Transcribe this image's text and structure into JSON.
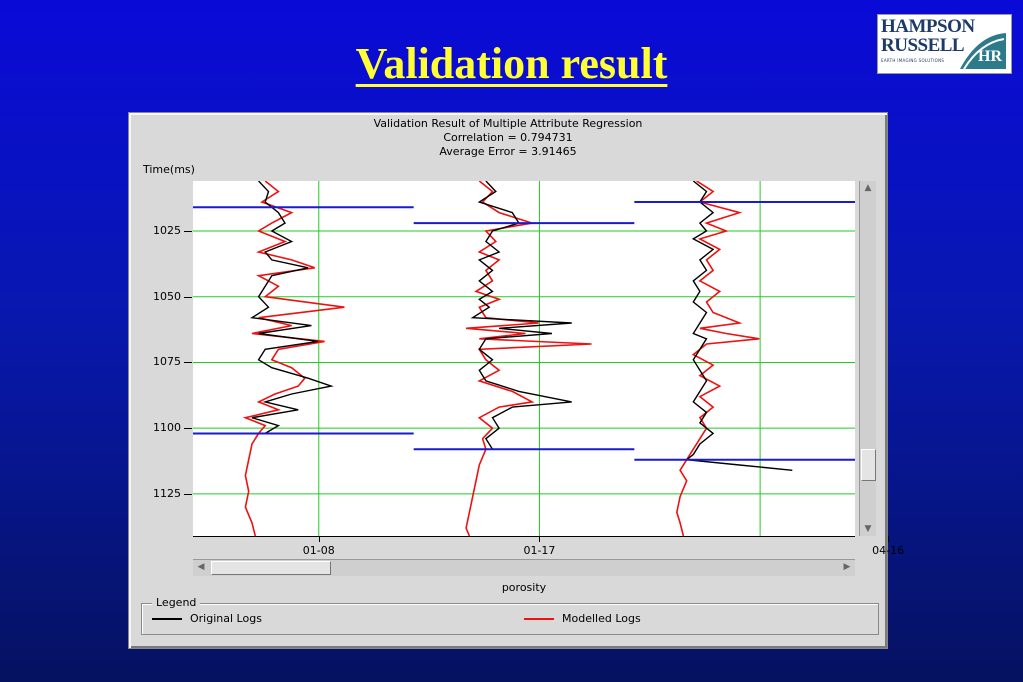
{
  "slide": {
    "title": "Validation result",
    "title_color": "#ffff33",
    "logo": {
      "line1": "HAMPSON",
      "line2": "RUSSELL",
      "tagline": "EARTH IMAGING SOLUTIONS",
      "mark": "HR"
    }
  },
  "chart_data": {
    "type": "line",
    "title": "Validation Result of Multiple Attribute Regression",
    "subtitle_lines": [
      "Correlation = 0.794731",
      "Average Error = 3.91465"
    ],
    "ylabel": "Time(ms)",
    "xlabel": "porosity",
    "y_reversed": true,
    "ylim": [
      1006,
      1141
    ],
    "yticks": [
      1025,
      1050,
      1075,
      1100,
      1125
    ],
    "xticks": [
      "01-08",
      "01-17",
      "04-16"
    ],
    "grid": true,
    "legend": {
      "title": "Legend",
      "placement": "bottom",
      "entries": [
        {
          "label": "Original Logs",
          "color": "#000000"
        },
        {
          "label": "Modelled Logs",
          "color": "#ee1111"
        }
      ]
    },
    "colors": {
      "original": "#000000",
      "modelled": "#ee1111",
      "horizon": "#1a1ad0",
      "grid": "#22cc22"
    },
    "tracks": [
      {
        "well": "01-08",
        "window": [
          1016,
          1102
        ],
        "original": [
          [
            12,
            1006
          ],
          [
            15,
            1010
          ],
          [
            14,
            1014
          ],
          [
            18,
            1018
          ],
          [
            20,
            1022
          ],
          [
            16,
            1025
          ],
          [
            22,
            1029
          ],
          [
            14,
            1033
          ],
          [
            16,
            1036
          ],
          [
            27,
            1039
          ],
          [
            16,
            1042
          ],
          [
            14,
            1046
          ],
          [
            12,
            1050
          ],
          [
            15,
            1054
          ],
          [
            10,
            1058
          ],
          [
            28,
            1061
          ],
          [
            12,
            1064
          ],
          [
            30,
            1067
          ],
          [
            14,
            1070
          ],
          [
            12,
            1074
          ],
          [
            16,
            1077
          ],
          [
            27,
            1081
          ],
          [
            34,
            1084
          ],
          [
            22,
            1087
          ],
          [
            14,
            1090
          ],
          [
            24,
            1093
          ],
          [
            10,
            1096
          ],
          [
            18,
            1099
          ],
          [
            14,
            1102
          ]
        ],
        "modelled": [
          [
            14,
            1006
          ],
          [
            18,
            1010
          ],
          [
            13,
            1014
          ],
          [
            22,
            1018
          ],
          [
            16,
            1022
          ],
          [
            12,
            1025
          ],
          [
            20,
            1029
          ],
          [
            12,
            1033
          ],
          [
            22,
            1036
          ],
          [
            29,
            1039
          ],
          [
            12,
            1042
          ],
          [
            18,
            1046
          ],
          [
            14,
            1050
          ],
          [
            38,
            1054
          ],
          [
            12,
            1058
          ],
          [
            22,
            1061
          ],
          [
            10,
            1064
          ],
          [
            32,
            1067
          ],
          [
            18,
            1070
          ],
          [
            16,
            1074
          ],
          [
            22,
            1077
          ],
          [
            26,
            1081
          ],
          [
            24,
            1084
          ],
          [
            17,
            1087
          ],
          [
            12,
            1090
          ],
          [
            18,
            1093
          ],
          [
            8,
            1096
          ],
          [
            14,
            1099
          ],
          [
            12,
            1102
          ],
          [
            10,
            1106
          ],
          [
            9,
            1112
          ],
          [
            8,
            1118
          ],
          [
            9,
            1124
          ],
          [
            8,
            1130
          ],
          [
            10,
            1136
          ],
          [
            11,
            1141
          ]
        ]
      },
      {
        "well": "01-17",
        "window": [
          1022,
          1108
        ],
        "original": [
          [
            14,
            1006
          ],
          [
            17,
            1010
          ],
          [
            12,
            1014
          ],
          [
            22,
            1018
          ],
          [
            24,
            1022
          ],
          [
            16,
            1025
          ],
          [
            14,
            1029
          ],
          [
            18,
            1033
          ],
          [
            12,
            1036
          ],
          [
            16,
            1040
          ],
          [
            12,
            1044
          ],
          [
            16,
            1048
          ],
          [
            12,
            1051
          ],
          [
            15,
            1054
          ],
          [
            10,
            1058
          ],
          [
            40,
            1060
          ],
          [
            18,
            1062
          ],
          [
            34,
            1064
          ],
          [
            14,
            1066
          ],
          [
            12,
            1070
          ],
          [
            16,
            1074
          ],
          [
            12,
            1078
          ],
          [
            14,
            1082
          ],
          [
            24,
            1086
          ],
          [
            40,
            1090
          ],
          [
            22,
            1092
          ],
          [
            16,
            1096
          ],
          [
            18,
            1100
          ],
          [
            14,
            1104
          ],
          [
            16,
            1108
          ]
        ],
        "modelled": [
          [
            12,
            1006
          ],
          [
            16,
            1010
          ],
          [
            13,
            1014
          ],
          [
            18,
            1018
          ],
          [
            28,
            1022
          ],
          [
            14,
            1025
          ],
          [
            17,
            1029
          ],
          [
            12,
            1033
          ],
          [
            18,
            1036
          ],
          [
            14,
            1040
          ],
          [
            16,
            1044
          ],
          [
            11,
            1048
          ],
          [
            18,
            1051
          ],
          [
            12,
            1054
          ],
          [
            14,
            1058
          ],
          [
            30,
            1060
          ],
          [
            8,
            1062
          ],
          [
            26,
            1064
          ],
          [
            12,
            1066
          ],
          [
            46,
            1068
          ],
          [
            12,
            1070
          ],
          [
            14,
            1074
          ],
          [
            18,
            1078
          ],
          [
            12,
            1082
          ],
          [
            22,
            1086
          ],
          [
            28,
            1090
          ],
          [
            18,
            1092
          ],
          [
            12,
            1096
          ],
          [
            16,
            1100
          ],
          [
            13,
            1104
          ],
          [
            14,
            1108
          ],
          [
            12,
            1114
          ],
          [
            11,
            1120
          ],
          [
            10,
            1126
          ],
          [
            9,
            1132
          ],
          [
            8,
            1138
          ],
          [
            9,
            1141
          ]
        ]
      },
      {
        "well": "04-16",
        "window": [
          1014,
          1112
        ],
        "original": [
          [
            10,
            1006
          ],
          [
            14,
            1010
          ],
          [
            12,
            1014
          ],
          [
            16,
            1018
          ],
          [
            12,
            1022
          ],
          [
            14,
            1025
          ],
          [
            10,
            1028
          ],
          [
            16,
            1032
          ],
          [
            12,
            1036
          ],
          [
            14,
            1040
          ],
          [
            10,
            1044
          ],
          [
            12,
            1048
          ],
          [
            10,
            1052
          ],
          [
            14,
            1056
          ],
          [
            12,
            1060
          ],
          [
            10,
            1064
          ],
          [
            14,
            1066
          ],
          [
            12,
            1070
          ],
          [
            10,
            1074
          ],
          [
            12,
            1078
          ],
          [
            14,
            1082
          ],
          [
            12,
            1086
          ],
          [
            10,
            1090
          ],
          [
            14,
            1094
          ],
          [
            12,
            1098
          ],
          [
            16,
            1102
          ],
          [
            12,
            1106
          ],
          [
            10,
            1110
          ],
          [
            8,
            1112
          ],
          [
            24,
            1114
          ],
          [
            40,
            1116
          ]
        ],
        "modelled": [
          [
            11,
            1006
          ],
          [
            16,
            1010
          ],
          [
            12,
            1014
          ],
          [
            24,
            1018
          ],
          [
            14,
            1022
          ],
          [
            20,
            1025
          ],
          [
            12,
            1028
          ],
          [
            18,
            1032
          ],
          [
            14,
            1036
          ],
          [
            16,
            1040
          ],
          [
            12,
            1044
          ],
          [
            18,
            1048
          ],
          [
            14,
            1052
          ],
          [
            16,
            1056
          ],
          [
            24,
            1060
          ],
          [
            12,
            1062
          ],
          [
            20,
            1064
          ],
          [
            30,
            1066
          ],
          [
            14,
            1068
          ],
          [
            10,
            1072
          ],
          [
            16,
            1076
          ],
          [
            12,
            1080
          ],
          [
            18,
            1084
          ],
          [
            12,
            1088
          ],
          [
            16,
            1092
          ],
          [
            12,
            1096
          ],
          [
            14,
            1100
          ],
          [
            12,
            1104
          ],
          [
            10,
            1108
          ],
          [
            8,
            1112
          ],
          [
            6,
            1116
          ],
          [
            8,
            1120
          ],
          [
            6,
            1126
          ],
          [
            5,
            1132
          ],
          [
            6,
            1136
          ],
          [
            7,
            1141
          ]
        ]
      }
    ]
  }
}
